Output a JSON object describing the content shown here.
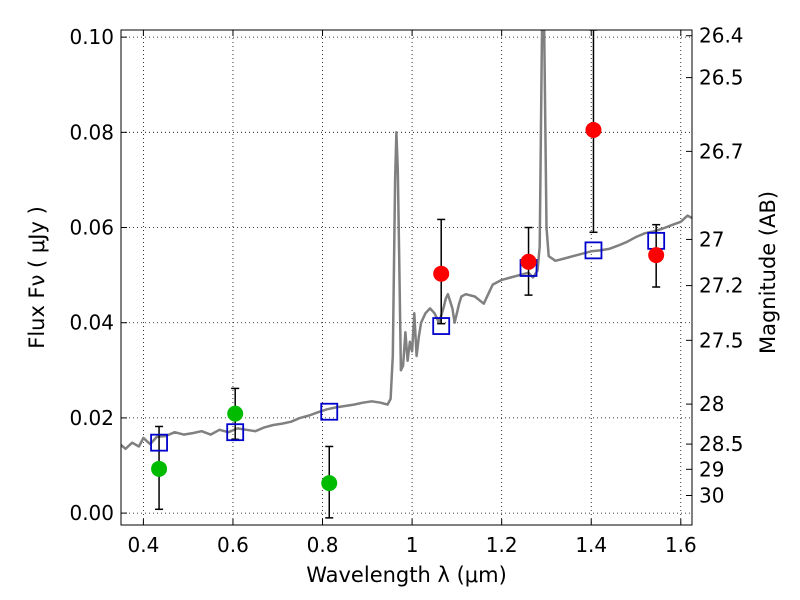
{
  "chart_data": {
    "type": "scatter",
    "title": "",
    "xlabel": "Wavelength  λ (μm)",
    "ylabel": "Flux  Fν  ( μJy )",
    "ylabel_right": "Magnitude (AB)",
    "xlim": [
      0.35,
      1.625
    ],
    "ylim": [
      -0.0025,
      0.1015
    ],
    "x_ticks": [
      0.4,
      0.6,
      0.8,
      1.0,
      1.2,
      1.4,
      1.6
    ],
    "x_tick_labels": [
      "0.4",
      "0.6",
      "0.8",
      "1",
      "1.2",
      "1.4",
      "1.6"
    ],
    "y_ticks": [
      0.0,
      0.02,
      0.04,
      0.06,
      0.08,
      0.1
    ],
    "y_tick_labels": [
      "0.00",
      "0.02",
      "0.04",
      "0.06",
      "0.08",
      "0.10"
    ],
    "right_ticks": [
      {
        "flux": 0.1003,
        "label": "26.4"
      },
      {
        "flux": 0.0915,
        "label": "26.5"
      },
      {
        "flux": 0.076,
        "label": "26.7"
      },
      {
        "flux": 0.0575,
        "label": "27"
      },
      {
        "flux": 0.0478,
        "label": "27.2"
      },
      {
        "flux": 0.0363,
        "label": "27.5"
      },
      {
        "flux": 0.0229,
        "label": "28"
      },
      {
        "flux": 0.0145,
        "label": "28.5"
      },
      {
        "flux": 0.0092,
        "label": "29"
      },
      {
        "flux": 0.0037,
        "label": "30"
      }
    ],
    "grid": true,
    "series": [
      {
        "kind": "spectrum",
        "color": "#808080",
        "points": [
          [
            0.35,
            0.0143
          ],
          [
            0.36,
            0.0135
          ],
          [
            0.375,
            0.0148
          ],
          [
            0.39,
            0.014
          ],
          [
            0.4,
            0.0158
          ],
          [
            0.415,
            0.0145
          ],
          [
            0.43,
            0.016
          ],
          [
            0.45,
            0.0162
          ],
          [
            0.47,
            0.017
          ],
          [
            0.49,
            0.0165
          ],
          [
            0.51,
            0.0168
          ],
          [
            0.53,
            0.0172
          ],
          [
            0.55,
            0.0165
          ],
          [
            0.57,
            0.0175
          ],
          [
            0.59,
            0.017
          ],
          [
            0.61,
            0.0178
          ],
          [
            0.63,
            0.0175
          ],
          [
            0.65,
            0.0172
          ],
          [
            0.67,
            0.018
          ],
          [
            0.69,
            0.0185
          ],
          [
            0.71,
            0.0188
          ],
          [
            0.73,
            0.0192
          ],
          [
            0.75,
            0.02
          ],
          [
            0.77,
            0.0205
          ],
          [
            0.79,
            0.0212
          ],
          [
            0.81,
            0.0218
          ],
          [
            0.83,
            0.0222
          ],
          [
            0.85,
            0.0225
          ],
          [
            0.87,
            0.0228
          ],
          [
            0.89,
            0.0232
          ],
          [
            0.91,
            0.0235
          ],
          [
            0.93,
            0.0232
          ],
          [
            0.945,
            0.0228
          ],
          [
            0.952,
            0.024
          ],
          [
            0.957,
            0.033
          ],
          [
            0.962,
            0.07
          ],
          [
            0.965,
            0.08
          ],
          [
            0.968,
            0.072
          ],
          [
            0.971,
            0.055
          ],
          [
            0.975,
            0.03
          ],
          [
            0.98,
            0.031
          ],
          [
            0.985,
            0.038
          ],
          [
            0.99,
            0.032
          ],
          [
            0.995,
            0.036
          ],
          [
            1.0,
            0.034
          ],
          [
            1.005,
            0.042
          ],
          [
            1.01,
            0.033
          ],
          [
            1.015,
            0.037
          ],
          [
            1.02,
            0.04
          ],
          [
            1.03,
            0.042
          ],
          [
            1.04,
            0.043
          ],
          [
            1.05,
            0.042
          ],
          [
            1.06,
            0.04
          ],
          [
            1.07,
            0.043
          ],
          [
            1.075,
            0.045
          ],
          [
            1.08,
            0.046
          ],
          [
            1.09,
            0.043
          ],
          [
            1.095,
            0.04
          ],
          [
            1.1,
            0.042
          ],
          [
            1.105,
            0.044
          ],
          [
            1.11,
            0.0455
          ],
          [
            1.12,
            0.046
          ],
          [
            1.14,
            0.0455
          ],
          [
            1.16,
            0.044
          ],
          [
            1.17,
            0.046
          ],
          [
            1.18,
            0.048
          ],
          [
            1.2,
            0.049
          ],
          [
            1.22,
            0.0495
          ],
          [
            1.24,
            0.05
          ],
          [
            1.26,
            0.0505
          ],
          [
            1.27,
            0.0495
          ],
          [
            1.28,
            0.051
          ],
          [
            1.285,
            0.056
          ],
          [
            1.29,
            0.1015
          ],
          [
            1.295,
            0.1015
          ],
          [
            1.3,
            0.06
          ],
          [
            1.305,
            0.054
          ],
          [
            1.32,
            0.053
          ],
          [
            1.34,
            0.0535
          ],
          [
            1.36,
            0.054
          ],
          [
            1.38,
            0.0545
          ],
          [
            1.4,
            0.055
          ],
          [
            1.42,
            0.0552
          ],
          [
            1.44,
            0.0555
          ],
          [
            1.46,
            0.0562
          ],
          [
            1.48,
            0.057
          ],
          [
            1.5,
            0.058
          ],
          [
            1.52,
            0.0588
          ],
          [
            1.54,
            0.0592
          ],
          [
            1.56,
            0.0598
          ],
          [
            1.58,
            0.0605
          ],
          [
            1.6,
            0.0612
          ],
          [
            1.615,
            0.0625
          ],
          [
            1.625,
            0.062
          ]
        ]
      },
      {
        "kind": "model",
        "marker": "square",
        "color": "#0000cc",
        "points": [
          [
            0.435,
            0.0148
          ],
          [
            0.605,
            0.017
          ],
          [
            0.815,
            0.0213
          ],
          [
            1.065,
            0.0393
          ],
          [
            1.26,
            0.0515
          ],
          [
            1.405,
            0.0552
          ],
          [
            1.545,
            0.0572
          ]
        ]
      },
      {
        "kind": "detections",
        "marker": "circle",
        "color": "#ff0000",
        "points": [
          {
            "x": 1.065,
            "y": 0.0503,
            "err_lo": 0.0398,
            "err_hi": 0.0617
          },
          {
            "x": 1.26,
            "y": 0.0528,
            "err_lo": 0.0458,
            "err_hi": 0.06
          },
          {
            "x": 1.405,
            "y": 0.0805,
            "err_lo": 0.059,
            "err_hi": 0.1015
          },
          {
            "x": 1.545,
            "y": 0.0542,
            "err_lo": 0.0475,
            "err_hi": 0.0606
          }
        ]
      },
      {
        "kind": "nondetections",
        "marker": "circle",
        "color": "#00bb00",
        "points": [
          {
            "x": 0.435,
            "y": 0.0093,
            "err_lo": 0.0008,
            "err_hi": 0.0182
          },
          {
            "x": 0.605,
            "y": 0.0209,
            "err_lo": 0.0155,
            "err_hi": 0.0262
          },
          {
            "x": 0.815,
            "y": 0.0063,
            "err_lo": -0.001,
            "err_hi": 0.014
          }
        ]
      }
    ]
  }
}
